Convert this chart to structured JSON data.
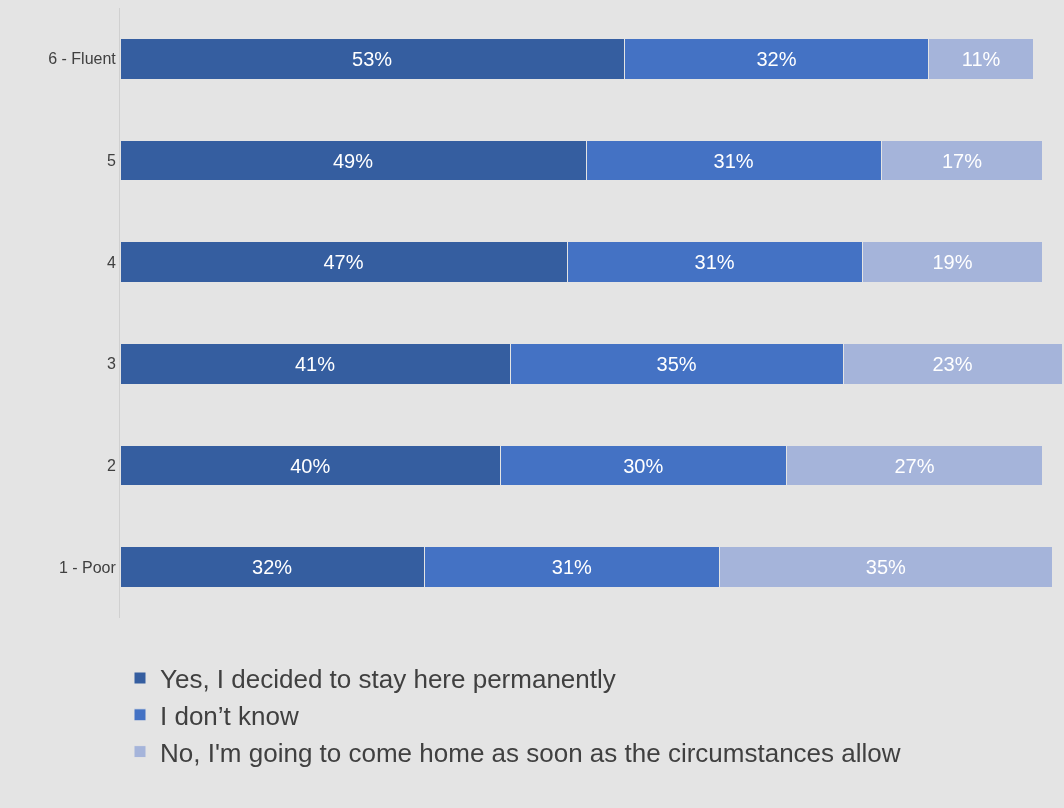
{
  "chart_data": {
    "type": "bar",
    "orientation": "horizontal",
    "stacked": true,
    "legend": "bottom",
    "grid": false,
    "tick_labels": "y",
    "categories": [
      "6 - Fluent",
      "5",
      "4",
      "3",
      "2",
      "1 - Poor"
    ],
    "series": [
      {
        "name": "Yes, I decided to stay here permanently",
        "color": "#355ea0",
        "values": [
          53,
          49,
          47,
          41,
          40,
          32
        ],
        "value_labels": [
          "53%",
          "49%",
          "47%",
          "41%",
          "40%",
          "32%"
        ]
      },
      {
        "name": "I don’t know",
        "color": "#4472c4",
        "values": [
          32,
          31,
          31,
          35,
          30,
          31
        ],
        "value_labels": [
          "32%",
          "31%",
          "31%",
          "35%",
          "30%",
          "31%"
        ]
      },
      {
        "name": "No, I'm going to come home as soon as the circumstances allow",
        "color": "#a5b4da",
        "values": [
          11,
          17,
          19,
          23,
          27,
          35
        ],
        "value_labels": [
          "11%",
          "17%",
          "19%",
          "23%",
          "27%",
          "35%"
        ]
      }
    ]
  }
}
